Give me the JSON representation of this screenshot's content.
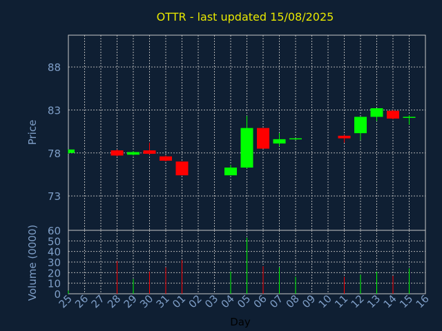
{
  "chart_data": [
    {
      "type": "candlestick",
      "title": "OTTR - last updated 15/08/2025",
      "ylabel": "Price",
      "yticks": [
        73,
        78,
        83,
        88
      ],
      "ylim": [
        69.0,
        91.7
      ],
      "categories": [
        "25",
        "26",
        "27",
        "28",
        "29",
        "30",
        "31",
        "01",
        "02",
        "03",
        "04",
        "05",
        "06",
        "07",
        "08",
        "09",
        "10",
        "11",
        "12",
        "13",
        "14",
        "15",
        "16"
      ],
      "up_color": "#00ff00",
      "down_color": "#ff0000",
      "candles": [
        {
          "x": "25",
          "open": 78.0,
          "high": 78.4,
          "low": 77.9,
          "close": 78.4
        },
        {
          "x": "28",
          "open": 78.3,
          "high": 78.4,
          "low": 77.6,
          "close": 77.7
        },
        {
          "x": "29",
          "open": 77.8,
          "high": 78.2,
          "low": 77.7,
          "close": 78.1
        },
        {
          "x": "30",
          "open": 78.3,
          "high": 79.2,
          "low": 77.8,
          "close": 77.9
        },
        {
          "x": "31",
          "open": 77.6,
          "high": 77.7,
          "low": 77.0,
          "close": 77.1
        },
        {
          "x": "01",
          "open": 77.0,
          "high": 77.0,
          "low": 75.4,
          "close": 75.4
        },
        {
          "x": "04",
          "open": 75.4,
          "high": 76.6,
          "low": 75.4,
          "close": 76.3
        },
        {
          "x": "05",
          "open": 76.3,
          "high": 82.3,
          "low": 76.2,
          "close": 80.9
        },
        {
          "x": "06",
          "open": 80.9,
          "high": 80.9,
          "low": 78.5,
          "close": 78.5
        },
        {
          "x": "07",
          "open": 79.1,
          "high": 80.3,
          "low": 78.8,
          "close": 79.6
        },
        {
          "x": "08",
          "open": 79.6,
          "high": 79.7,
          "low": 79.5,
          "close": 79.7
        },
        {
          "x": "11",
          "open": 80.0,
          "high": 80.1,
          "low": 79.2,
          "close": 79.7
        },
        {
          "x": "12",
          "open": 80.3,
          "high": 82.2,
          "low": 79.5,
          "close": 82.2
        },
        {
          "x": "13",
          "open": 82.2,
          "high": 83.2,
          "low": 81.7,
          "close": 83.2
        },
        {
          "x": "14",
          "open": 82.9,
          "high": 83.0,
          "low": 81.9,
          "close": 82.0
        },
        {
          "x": "15",
          "open": 82.1,
          "high": 82.4,
          "low": 81.3,
          "close": 82.2
        }
      ]
    },
    {
      "type": "bar",
      "ylabel": "Volume (0000)",
      "yticks": [
        0,
        10,
        20,
        30,
        40,
        50,
        60
      ],
      "ylim": [
        0,
        60
      ],
      "xlabel": "Day",
      "categories": [
        "25",
        "26",
        "27",
        "28",
        "29",
        "30",
        "31",
        "01",
        "02",
        "03",
        "04",
        "05",
        "06",
        "07",
        "08",
        "09",
        "10",
        "11",
        "12",
        "13",
        "14",
        "15",
        "16"
      ],
      "bars": [
        {
          "x": "25",
          "value": 3,
          "color": "#00ff00"
        },
        {
          "x": "28",
          "value": 31,
          "color": "#ff0000"
        },
        {
          "x": "29",
          "value": 14,
          "color": "#00ff00"
        },
        {
          "x": "30",
          "value": 21,
          "color": "#ff0000"
        },
        {
          "x": "31",
          "value": 25,
          "color": "#ff0000"
        },
        {
          "x": "01",
          "value": 32,
          "color": "#ff0000"
        },
        {
          "x": "04",
          "value": 21,
          "color": "#00ff00"
        },
        {
          "x": "05",
          "value": 53,
          "color": "#00ff00"
        },
        {
          "x": "06",
          "value": 26,
          "color": "#ff0000"
        },
        {
          "x": "07",
          "value": 25,
          "color": "#00ff00"
        },
        {
          "x": "08",
          "value": 16,
          "color": "#00ff00"
        },
        {
          "x": "11",
          "value": 16,
          "color": "#ff0000"
        },
        {
          "x": "12",
          "value": 18,
          "color": "#00ff00"
        },
        {
          "x": "13",
          "value": 21,
          "color": "#00ff00"
        },
        {
          "x": "14",
          "value": 17,
          "color": "#ff0000"
        },
        {
          "x": "15",
          "value": 24,
          "color": "#00ff00"
        }
      ]
    }
  ]
}
